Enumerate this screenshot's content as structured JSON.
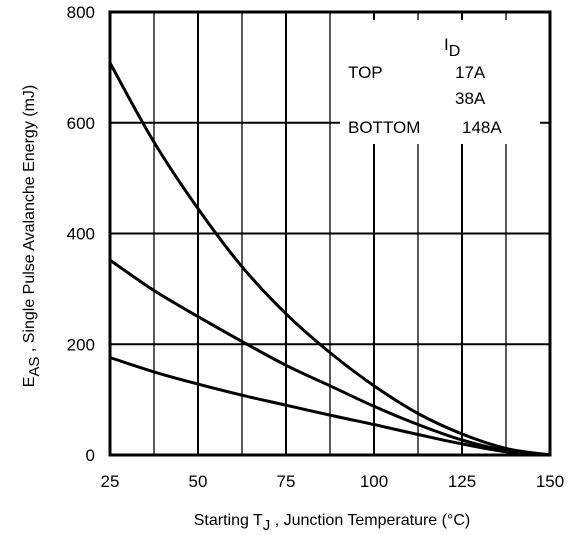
{
  "chart_data": {
    "type": "line",
    "title": "",
    "xlabel_pre": "Starting T",
    "xlabel_sub": "J",
    "xlabel_post": " , Junction Temperature (°C)",
    "ylabel_pre": "E",
    "ylabel_sub": "AS",
    "ylabel_post": " , Single Pulse Avalanche Energy (mJ)",
    "xlim": [
      25,
      150
    ],
    "ylim": [
      0,
      800
    ],
    "x_ticks": [
      "25",
      "50",
      "75",
      "100",
      "125",
      "150"
    ],
    "y_ticks": [
      "0",
      "200",
      "400",
      "600",
      "800"
    ],
    "grid": true,
    "legend": {
      "position": "top-right",
      "header_pre": "I",
      "header_sub": "D",
      "rows": [
        {
          "label": "TOP",
          "value": "17A"
        },
        {
          "label": "",
          "value": "38A"
        },
        {
          "label": "BOTTOM",
          "value": "148A"
        }
      ]
    },
    "x": [
      25,
      37.5,
      50,
      62.5,
      75,
      87.5,
      100,
      112.5,
      125,
      137.5,
      150
    ],
    "series": [
      {
        "name": "17A",
        "values": [
          708,
          565,
          445,
          340,
          255,
          185,
          125,
          75,
          38,
          12,
          0
        ]
      },
      {
        "name": "38A",
        "values": [
          352,
          297,
          250,
          205,
          162,
          125,
          88,
          55,
          27,
          8,
          0
        ]
      },
      {
        "name": "148A",
        "values": [
          176,
          150,
          128,
          108,
          90,
          72,
          55,
          37,
          20,
          6,
          0
        ]
      }
    ]
  }
}
